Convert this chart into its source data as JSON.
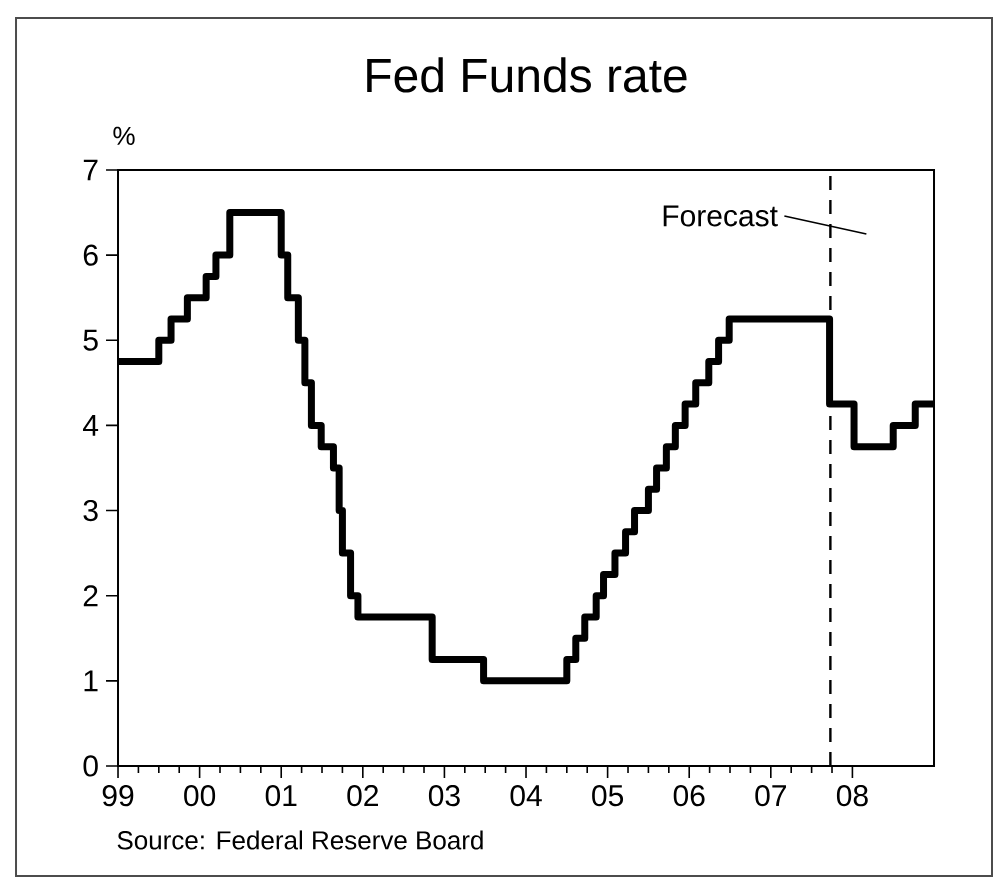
{
  "chart_data": {
    "type": "step",
    "title": "Fed Funds rate",
    "ylabel": "%",
    "x": [
      1999.0,
      1999.5,
      1999.65,
      1999.85,
      2000.08,
      2000.2,
      2000.37,
      2001.0,
      2001.08,
      2001.21,
      2001.29,
      2001.37,
      2001.49,
      2001.64,
      2001.71,
      2001.75,
      2001.85,
      2001.94,
      2002.85,
      2003.48,
      2004.5,
      2004.61,
      2004.72,
      2004.86,
      2004.95,
      2005.09,
      2005.22,
      2005.33,
      2005.5,
      2005.6,
      2005.72,
      2005.83,
      2005.95,
      2006.08,
      2006.24,
      2006.36,
      2006.49,
      2007.72,
      2008.02,
      2008.5,
      2008.77,
      2009.0
    ],
    "values": [
      4.75,
      5.0,
      5.25,
      5.5,
      5.75,
      6.0,
      6.5,
      6.0,
      5.5,
      5.0,
      4.5,
      4.0,
      3.75,
      3.5,
      3.0,
      2.5,
      2.0,
      1.75,
      1.25,
      1.0,
      1.25,
      1.5,
      1.75,
      2.0,
      2.25,
      2.5,
      2.75,
      3.0,
      3.25,
      3.5,
      3.75,
      4.0,
      4.25,
      4.5,
      4.75,
      5.0,
      5.25,
      4.25,
      3.75,
      4.0,
      4.25,
      4.25
    ],
    "color": "#000000",
    "marker": "none",
    "line_style": "solid",
    "grid": false,
    "legend": false,
    "xlim": [
      1999,
      2009
    ],
    "xticks": [
      {
        "value": 1999,
        "label": "99"
      },
      {
        "value": 2000,
        "label": "00"
      },
      {
        "value": 2001,
        "label": "01"
      },
      {
        "value": 2002,
        "label": "02"
      },
      {
        "value": 2003,
        "label": "03"
      },
      {
        "value": 2004,
        "label": "04"
      },
      {
        "value": 2005,
        "label": "05"
      },
      {
        "value": 2006,
        "label": "06"
      },
      {
        "value": 2007,
        "label": "07"
      },
      {
        "value": 2008,
        "label": "08"
      }
    ],
    "ylim": [
      0,
      7
    ],
    "yticks": [
      0,
      1,
      2,
      3,
      4,
      5,
      6,
      7
    ],
    "ref_lines": [
      {
        "axis": "x",
        "value": 2007.73,
        "label": "Forecast",
        "line_style": "dashed",
        "color": "#000000"
      }
    ],
    "annotations": [
      "Source: Federal Reserve Board"
    ]
  }
}
